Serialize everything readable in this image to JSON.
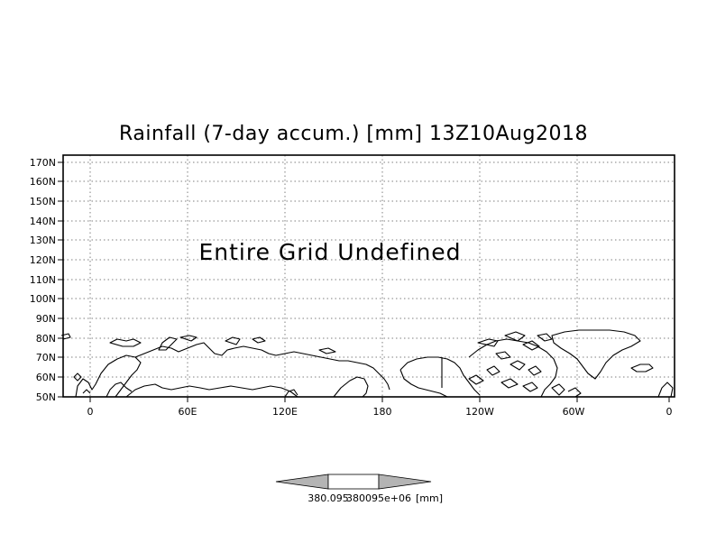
{
  "title": "Rainfall (7-day accum.) [mm] 13Z10Aug2018",
  "message": "Entire Grid Undefined",
  "lat_labels": [
    "170N",
    "160N",
    "150N",
    "140N",
    "130N",
    "120N",
    "110N",
    "100N",
    "90N",
    "80N",
    "70N",
    "60N",
    "50N"
  ],
  "lon_labels": [
    "0",
    "60E",
    "120E",
    "180",
    "120W",
    "60W",
    "0"
  ],
  "colorbar": {
    "low_label": "380.095",
    "mid_label": "380095e+06",
    "unit_label": "[mm]",
    "colors": [
      "#b4b4b4",
      "#ffffff",
      "#b4b4b4"
    ]
  },
  "map": {
    "lat_range": [
      50,
      173
    ],
    "lon_range": [
      -15,
      360
    ],
    "coastline_color": "#000000",
    "grid_color": "#7f7f7f"
  }
}
